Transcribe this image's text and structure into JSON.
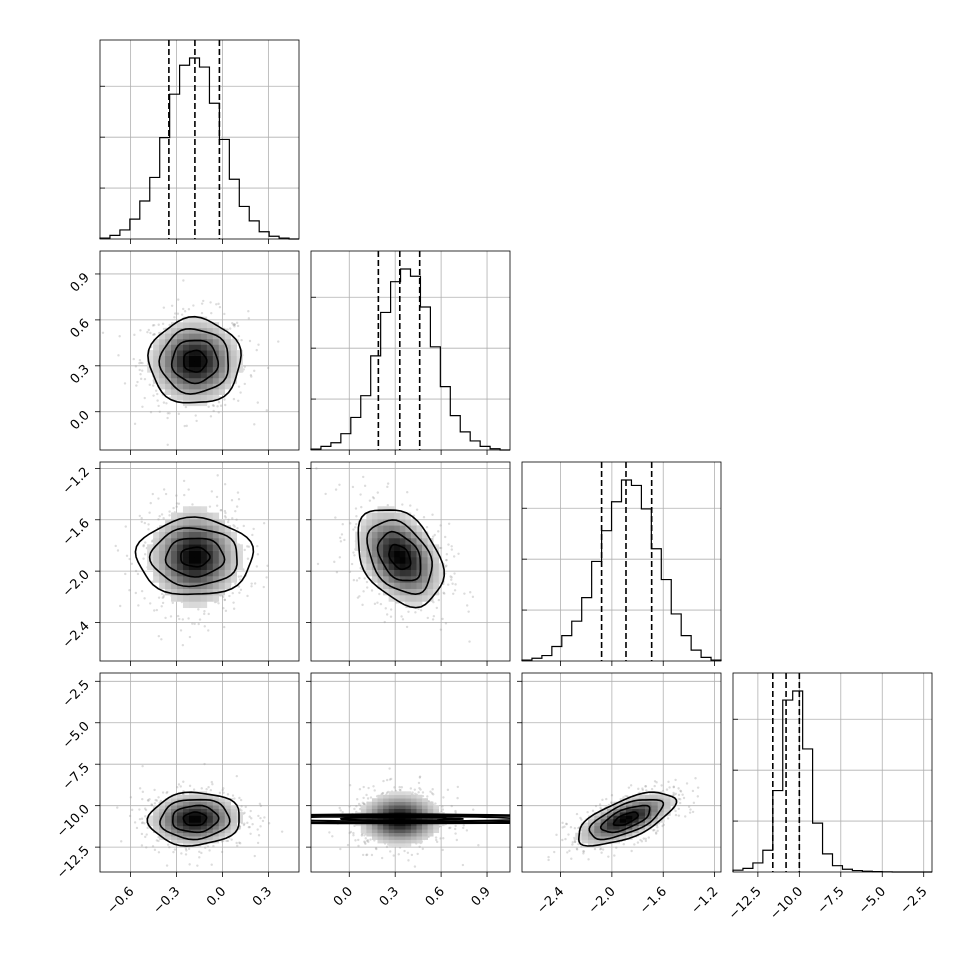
{
  "chart_data": {
    "type": "corner",
    "title": "",
    "parameters": [
      {
        "ticks": [
          -0.6,
          -0.3,
          0.0,
          0.3
        ],
        "range": [
          -0.8,
          0.5
        ],
        "quantiles": [
          -0.35,
          -0.18,
          -0.02
        ],
        "mean": -0.18,
        "sd": 0.15
      },
      {
        "ticks": [
          0.0,
          0.3,
          0.6,
          0.9
        ],
        "range": [
          -0.25,
          1.05
        ],
        "quantiles": [
          0.19,
          0.33,
          0.46
        ],
        "mean": 0.33,
        "sd": 0.14
      },
      {
        "ticks": [
          -2.4,
          -2.0,
          -1.6,
          -1.2
        ],
        "range": [
          -2.7,
          -1.15
        ],
        "quantiles": [
          -2.08,
          -1.89,
          -1.69
        ],
        "mean": -1.89,
        "sd": 0.19
      },
      {
        "ticks": [
          -12.5,
          -10.0,
          -7.5,
          -5.0,
          -2.5
        ],
        "range": [
          -14.0,
          -2.0
        ],
        "quantiles": [
          -11.6,
          -10.8,
          -10.0
        ],
        "mean": -10.8,
        "sd": 0.8
      }
    ],
    "tick_labels": {
      "p0": [
        "−0.6",
        "−0.3",
        "0.0",
        "0.3"
      ],
      "p1": [
        "0.0",
        "0.3",
        "0.6",
        "0.9"
      ],
      "p2": [
        "−2.4",
        "−2.0",
        "−1.6",
        "−1.2"
      ],
      "p3": [
        "−12.5",
        "−10.0",
        "−7.5",
        "−5.0",
        "−2.5"
      ]
    },
    "histograms": [
      [
        0.005,
        0.02,
        0.05,
        0.11,
        0.21,
        0.34,
        0.56,
        0.8,
        0.96,
        1.0,
        0.95,
        0.75,
        0.55,
        0.33,
        0.18,
        0.1,
        0.04,
        0.015,
        0.005,
        0.0
      ],
      [
        0.005,
        0.02,
        0.04,
        0.09,
        0.18,
        0.3,
        0.52,
        0.76,
        0.93,
        1.0,
        0.96,
        0.79,
        0.57,
        0.35,
        0.19,
        0.1,
        0.05,
        0.02,
        0.007,
        0.0
      ],
      [
        0.005,
        0.015,
        0.03,
        0.08,
        0.14,
        0.22,
        0.35,
        0.55,
        0.72,
        0.88,
        1.0,
        0.97,
        0.84,
        0.62,
        0.45,
        0.26,
        0.14,
        0.06,
        0.02,
        0.005
      ],
      [
        0.01,
        0.02,
        0.05,
        0.12,
        0.45,
        0.95,
        1.0,
        0.68,
        0.27,
        0.1,
        0.035,
        0.015,
        0.008,
        0.004,
        0.002,
        0.001,
        0.0,
        0.0,
        0.0,
        0.0
      ]
    ],
    "pairs": [
      {
        "x": 0,
        "y": 1,
        "rho": 0.0
      },
      {
        "x": 0,
        "y": 2,
        "rho": 0.0
      },
      {
        "x": 1,
        "y": 2,
        "rho": -0.35
      },
      {
        "x": 0,
        "y": 3,
        "rho": 0.05
      },
      {
        "x": 1,
        "y": 3,
        "rho": 0.0
      },
      {
        "x": 2,
        "y": 3,
        "rho": 0.65
      }
    ],
    "contour_levels_sigma": [
      0.5,
      1.0,
      1.5,
      2.0
    ],
    "grid": true
  }
}
